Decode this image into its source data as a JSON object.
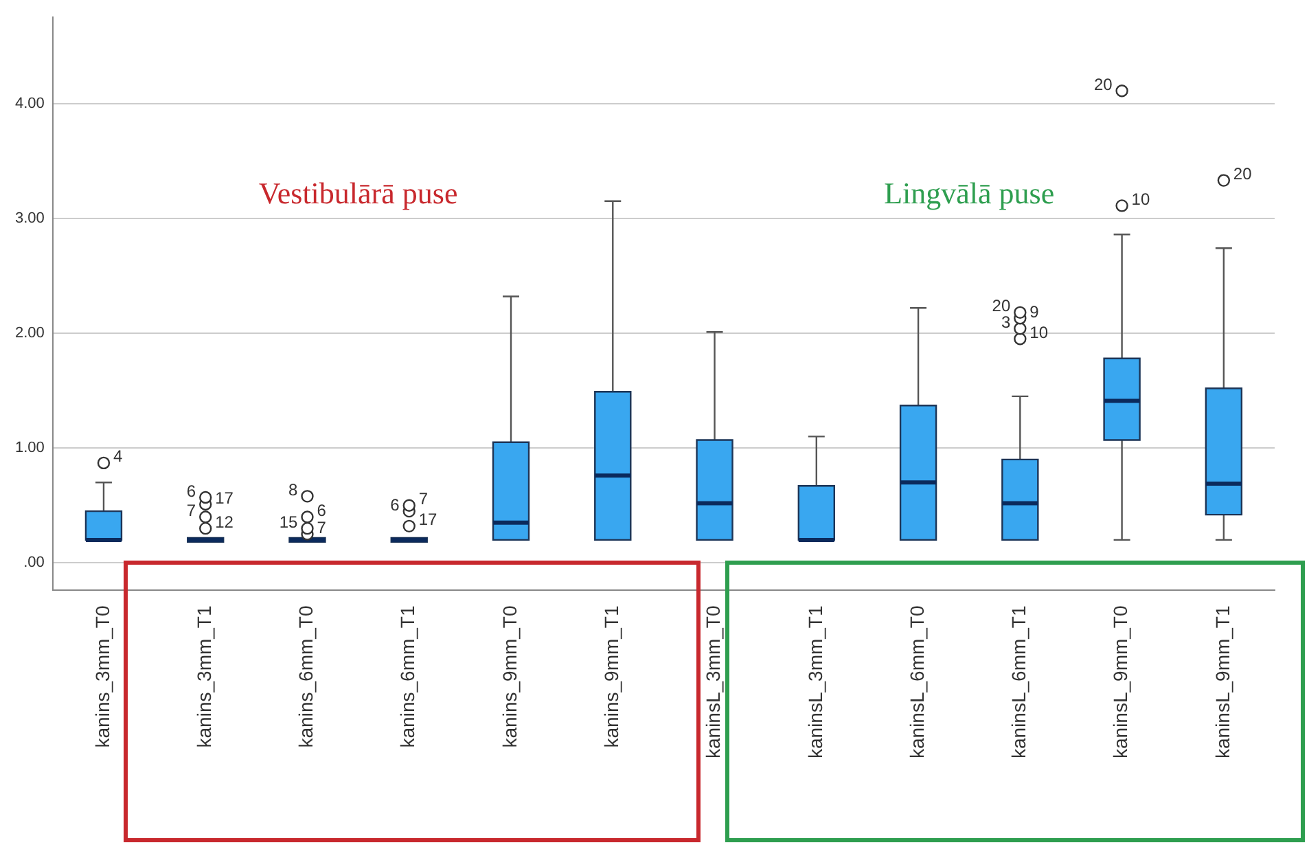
{
  "chart_data": {
    "type": "box",
    "categories": [
      "kanins_3mm_T0",
      "kanins_3mm_T1",
      "kanins_6mm_T0",
      "kanins_6mm_T1",
      "kanins_9mm_T0",
      "kanins_9mm_T1",
      "kaninsL_3mm_T0",
      "kaninsL_3mm_T1",
      "kaninsL_6mm_T0",
      "kaninsL_6mm_T1",
      "kaninsL_9mm_T0",
      "kaninsL_9mm_T1"
    ],
    "color": "#39a7f0",
    "boxes": [
      {
        "low": 0.2,
        "q1": 0.2,
        "median": 0.2,
        "q3": 0.45,
        "high": 0.7,
        "outliers": [
          0.87
        ]
      },
      {
        "low": 0.2,
        "q1": 0.2,
        "median": 0.2,
        "q3": 0.2,
        "high": 0.2,
        "outliers": [
          0.3,
          0.4,
          0.51,
          0.57
        ]
      },
      {
        "low": 0.2,
        "q1": 0.2,
        "median": 0.2,
        "q3": 0.2,
        "high": 0.2,
        "outliers": [
          0.25,
          0.3,
          0.4,
          0.58
        ]
      },
      {
        "low": 0.2,
        "q1": 0.2,
        "median": 0.2,
        "q3": 0.2,
        "high": 0.2,
        "outliers": [
          0.32,
          0.45,
          0.5
        ]
      },
      {
        "low": 0.2,
        "q1": 0.2,
        "median": 0.35,
        "q3": 1.05,
        "high": 2.32
      },
      {
        "low": 0.2,
        "q1": 0.2,
        "median": 0.76,
        "q3": 1.49,
        "high": 3.15
      },
      {
        "low": 0.2,
        "q1": 0.2,
        "median": 0.52,
        "q3": 1.07,
        "high": 2.01
      },
      {
        "low": 0.2,
        "q1": 0.2,
        "median": 0.2,
        "q3": 0.67,
        "high": 1.1
      },
      {
        "low": 0.2,
        "q1": 0.2,
        "median": 0.7,
        "q3": 1.37,
        "high": 2.22
      },
      {
        "low": 0.2,
        "q1": 0.2,
        "median": 0.52,
        "q3": 0.9,
        "high": 1.45,
        "outliers": [
          1.95,
          2.04,
          2.13,
          2.18
        ]
      },
      {
        "low": 0.2,
        "q1": 1.07,
        "median": 1.41,
        "q3": 1.78,
        "high": 2.86,
        "outliers": [
          3.11,
          4.11
        ]
      },
      {
        "low": 0.2,
        "q1": 0.42,
        "median": 0.69,
        "q3": 1.52,
        "high": 2.74,
        "outliers": [
          3.33
        ]
      }
    ],
    "ylim": [
      -0.24,
      4.75
    ],
    "yticks": [
      {
        "value": 0,
        "label": ".00"
      },
      {
        "value": 1,
        "label": "1.00"
      },
      {
        "value": 2,
        "label": "2.00"
      },
      {
        "value": 3,
        "label": "3.00"
      },
      {
        "value": 4,
        "label": "4.00"
      }
    ],
    "grid": "y",
    "marker": "circle",
    "annotations": [
      "Vestibulārā puse",
      "Lingvālā puse",
      "4",
      "12",
      "7",
      "17",
      "6",
      "7",
      "15",
      "6",
      "8",
      "17",
      "6",
      "7",
      "10",
      "3",
      "9",
      "20",
      "10",
      "20",
      "20"
    ]
  }
}
